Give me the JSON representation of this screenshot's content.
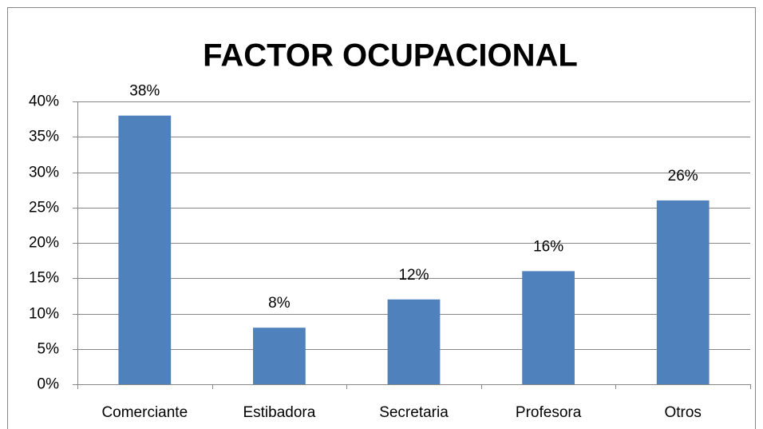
{
  "chart_data": {
    "type": "bar",
    "title": "FACTOR OCUPACIONAL",
    "categories": [
      "Comerciante",
      "Estibadora",
      "Secretaria",
      "Profesora",
      "Otros"
    ],
    "values": [
      38,
      8,
      12,
      16,
      26
    ],
    "value_labels": [
      "38%",
      "8%",
      "12%",
      "16%",
      "26%"
    ],
    "color": "#4f81bd",
    "ylim": [
      0,
      40
    ],
    "yticks": [
      {
        "value": 0,
        "label": "0%"
      },
      {
        "value": 5,
        "label": "5%"
      },
      {
        "value": 10,
        "label": "10%"
      },
      {
        "value": 15,
        "label": "15%"
      },
      {
        "value": 20,
        "label": "20%"
      },
      {
        "value": 25,
        "label": "25%"
      },
      {
        "value": 30,
        "label": "30%"
      },
      {
        "value": 35,
        "label": "35%"
      },
      {
        "value": 40,
        "label": "40%"
      }
    ],
    "grid": true
  }
}
